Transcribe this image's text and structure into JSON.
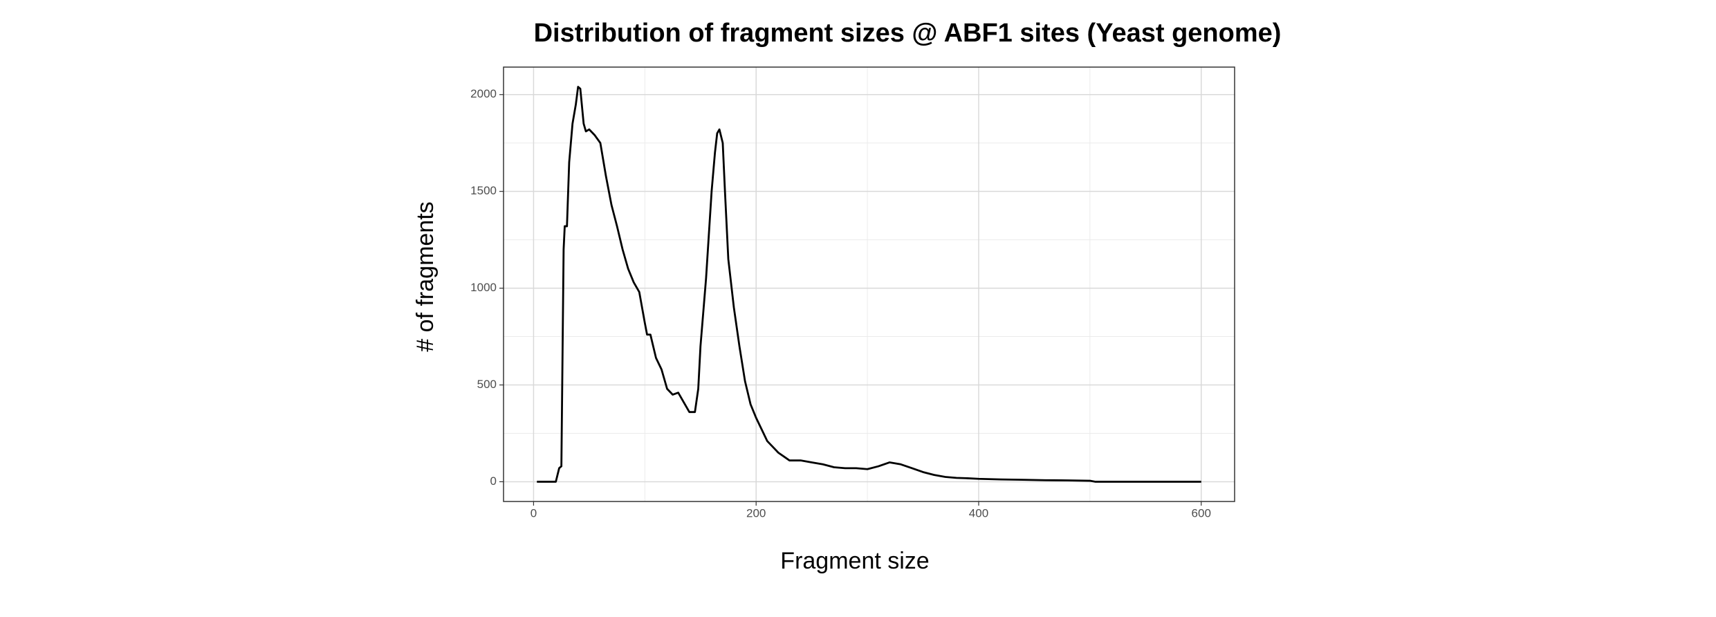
{
  "chart_data": {
    "type": "line",
    "title": "Distribution of fragment sizes @ ABF1 sites (Yeast genome)",
    "x_label": "Fragment size",
    "y_label": "# of fragments",
    "x": [
      3,
      10,
      20,
      23,
      25,
      27,
      28,
      30,
      32,
      35,
      38,
      40,
      42,
      45,
      47,
      50,
      55,
      60,
      65,
      70,
      75,
      80,
      85,
      90,
      95,
      100,
      102,
      105,
      110,
      115,
      120,
      125,
      130,
      135,
      140,
      145,
      148,
      150,
      155,
      160,
      163,
      165,
      167,
      170,
      172,
      175,
      180,
      185,
      190,
      195,
      200,
      205,
      210,
      215,
      220,
      225,
      230,
      240,
      250,
      260,
      270,
      280,
      290,
      300,
      310,
      320,
      330,
      340,
      350,
      360,
      370,
      380,
      390,
      400,
      420,
      440,
      460,
      480,
      500,
      505,
      510,
      550,
      600
    ],
    "series": [
      {
        "name": "fragments",
        "color": "#000000",
        "values": [
          0,
          0,
          0,
          70,
          80,
          1200,
          1320,
          1320,
          1650,
          1850,
          1950,
          2040,
          2030,
          1850,
          1810,
          1820,
          1790,
          1750,
          1580,
          1430,
          1320,
          1200,
          1100,
          1030,
          980,
          820,
          760,
          760,
          640,
          580,
          480,
          450,
          460,
          410,
          360,
          360,
          480,
          700,
          1050,
          1500,
          1700,
          1800,
          1820,
          1750,
          1500,
          1150,
          900,
          700,
          520,
          400,
          330,
          270,
          210,
          180,
          150,
          130,
          110,
          110,
          100,
          90,
          75,
          70,
          70,
          65,
          80,
          100,
          90,
          70,
          50,
          35,
          25,
          20,
          18,
          15,
          12,
          10,
          8,
          7,
          5,
          0,
          0,
          0,
          0
        ]
      }
    ],
    "xlim": [
      -27,
      630
    ],
    "ylim": [
      -102,
      2142
    ],
    "xticks": [
      0,
      200,
      400,
      600
    ],
    "yticks": [
      0,
      500,
      1000,
      1500,
      2000
    ],
    "xminorticks": [
      100,
      300,
      500
    ],
    "yminorticks": [
      250,
      750,
      1250,
      1750
    ],
    "grid": true
  }
}
